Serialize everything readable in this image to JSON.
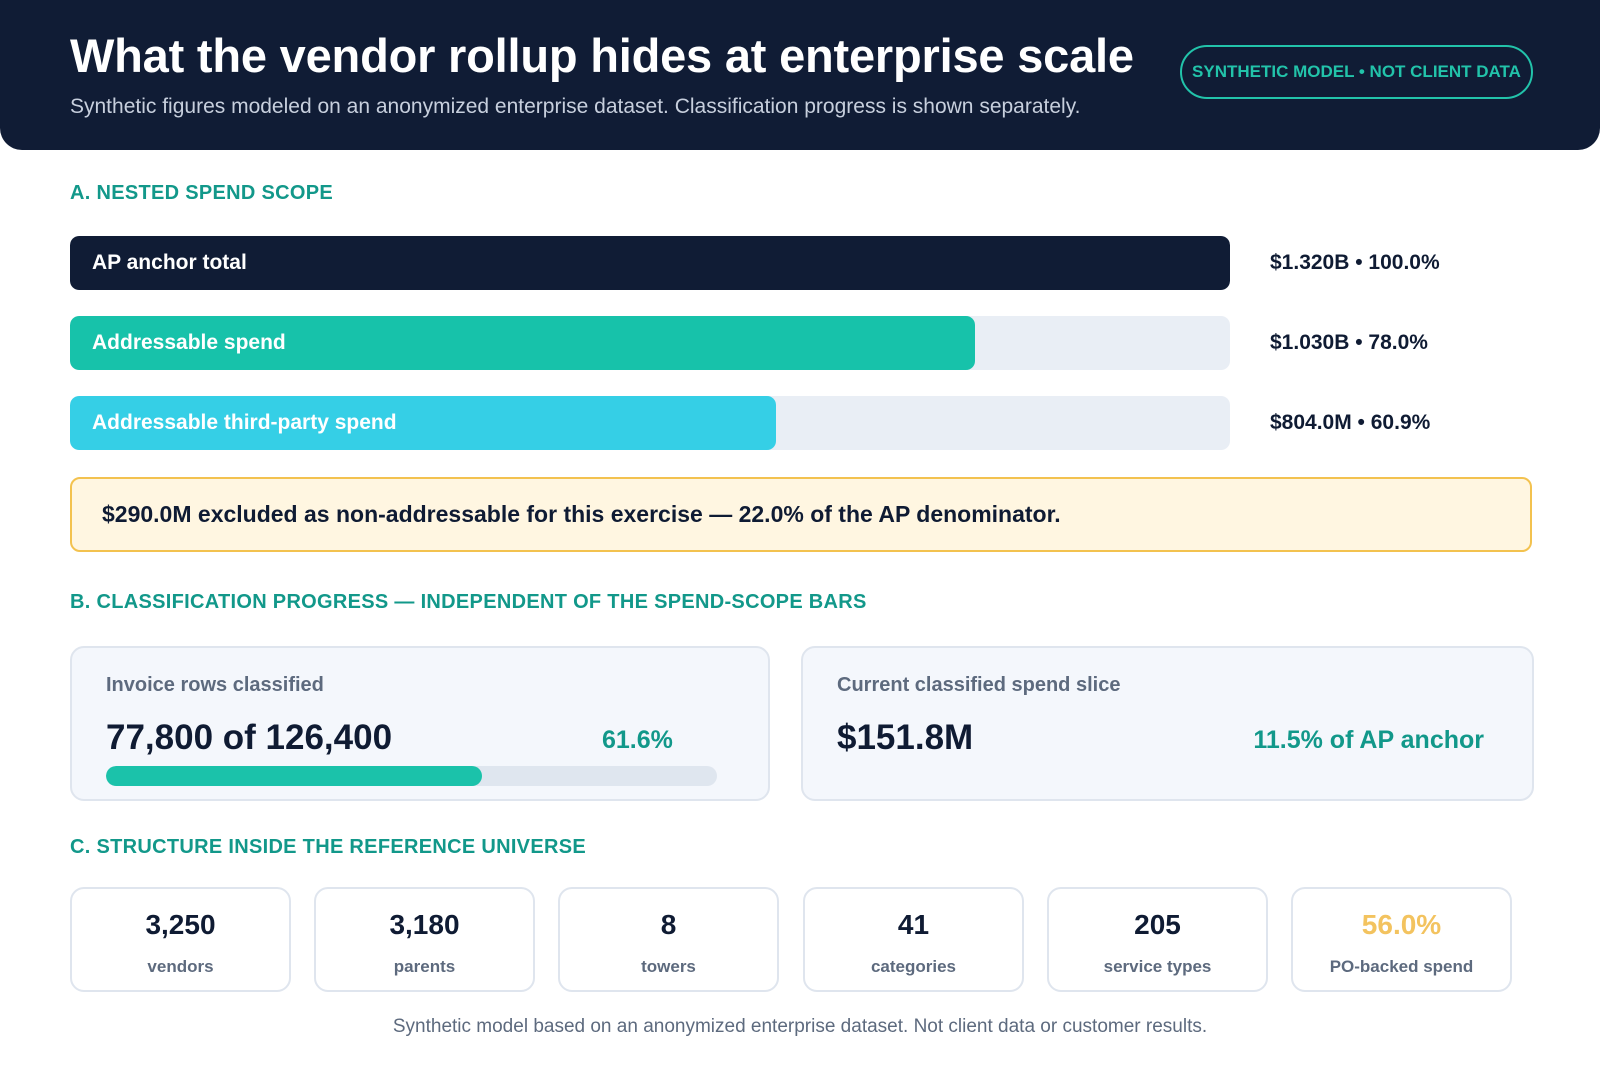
{
  "header": {
    "title": "What the vendor rollup hides at enterprise scale",
    "subtitle": "Synthetic figures modeled on an anonymized enterprise dataset. Classification progress is shown separately.",
    "badge": "SYNTHETIC MODEL • NOT CLIENT DATA"
  },
  "section_a": {
    "label": "A. NESTED SPEND SCOPE",
    "bars": [
      {
        "label": "AP anchor total",
        "value_text": "$1.320B • 100.0%",
        "share": 1.0,
        "color": "#101c35"
      },
      {
        "label": "Addressable spend",
        "value_text": "$1.030B • 78.0%",
        "share": 0.78,
        "color": "#17c2aa"
      },
      {
        "label": "Addressable third-party spend",
        "value_text": "$804.0M • 60.9%",
        "share": 0.609,
        "color": "#35cfe6"
      }
    ],
    "note": "$290.0M excluded as non-addressable for this exercise — 22.0% of the AP denominator."
  },
  "section_b": {
    "label": "B. CLASSIFICATION PROGRESS — INDEPENDENT OF THE SPEND-SCOPE BARS",
    "rows_card": {
      "title": "Invoice rows classified",
      "value": "77,800 of 126,400",
      "pct": "61.6%",
      "progress": 0.616
    },
    "spend_card": {
      "title": "Current classified spend slice",
      "value": "$151.8M",
      "pct": "11.5% of AP anchor"
    }
  },
  "section_c": {
    "label": "C. STRUCTURE INSIDE THE REFERENCE UNIVERSE",
    "stats": [
      {
        "value": "3,250",
        "label": "vendors"
      },
      {
        "value": "3,180",
        "label": "parents"
      },
      {
        "value": "8",
        "label": "towers"
      },
      {
        "value": "41",
        "label": "categories"
      },
      {
        "value": "205",
        "label": "service types"
      },
      {
        "value": "56.0%",
        "label": "PO-backed spend",
        "accent": "#f3c35f"
      }
    ]
  },
  "footer": "Synthetic model based on an anonymized enterprise dataset. Not client data or customer results."
}
